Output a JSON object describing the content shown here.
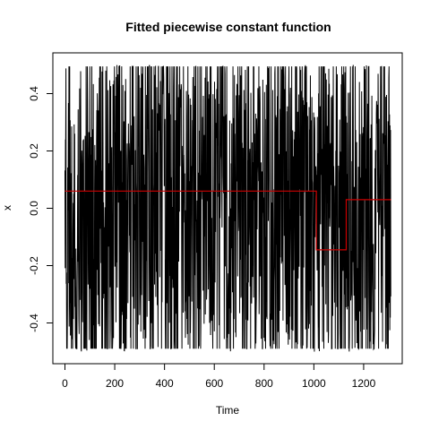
{
  "chart_data": {
    "type": "line",
    "title": "Fitted piecewise constant function",
    "xlabel": "Time",
    "ylabel": "x",
    "xlim": [
      0,
      1310
    ],
    "ylim": [
      -0.5,
      0.5
    ],
    "x_ticks": [
      0,
      200,
      400,
      600,
      800,
      1000,
      1200
    ],
    "x_tick_labels": [
      "0",
      "200",
      "400",
      "600",
      "800",
      "1000",
      "1200"
    ],
    "y_ticks": [
      -0.4,
      -0.2,
      0.0,
      0.2,
      0.4
    ],
    "y_tick_labels": [
      "-0.4",
      "-0.2",
      "0.0",
      "0.2",
      "0.4"
    ],
    "grid": false,
    "series": [
      {
        "color": "#000000",
        "style": "oscillating noise, values between -0.5 and 0.5",
        "n_points": 1310,
        "value_range": [
          -0.5,
          0.5
        ]
      },
      {
        "color": "#cc0000",
        "style": "step",
        "points": [
          [
            0,
            0.06
          ],
          [
            1010,
            0.06
          ],
          [
            1010,
            -0.145
          ],
          [
            1130,
            -0.145
          ],
          [
            1130,
            0.03
          ],
          [
            1310,
            0.03
          ]
        ]
      }
    ]
  }
}
